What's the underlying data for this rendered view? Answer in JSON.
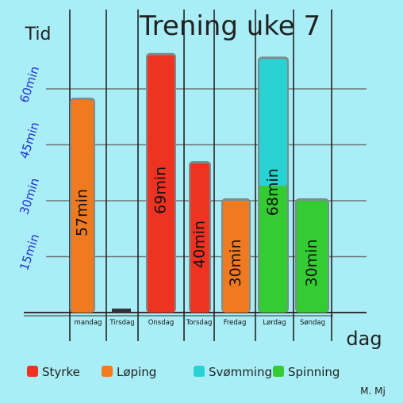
{
  "chart_data": {
    "type": "bar",
    "title": "Trening uke 7",
    "ylabel": "Tid",
    "xlabel": "dag",
    "signature": "M. Mj",
    "ylim": [
      0,
      80
    ],
    "yticks": [
      {
        "value": 15,
        "label": "15min"
      },
      {
        "value": 30,
        "label": "30min"
      },
      {
        "value": 45,
        "label": "45min"
      },
      {
        "value": 60,
        "label": "60min"
      }
    ],
    "grid": true,
    "legend_position": "bottom",
    "categories": [
      "mandag",
      "Tirsdag",
      "Onsdag",
      "Torsdag",
      "Fredag",
      "Lørdag",
      "Søndag"
    ],
    "series": [
      {
        "name": "Styrke",
        "color": "#ee3322",
        "values": [
          0,
          0,
          69,
          40,
          0,
          0,
          0
        ]
      },
      {
        "name": "Løping",
        "color": "#f07a20",
        "values": [
          57,
          0,
          0,
          0,
          30,
          0,
          0
        ]
      },
      {
        "name": "Svømming",
        "color": "#29d3d3",
        "values": [
          0,
          0,
          0,
          0,
          0,
          34,
          0
        ]
      },
      {
        "name": "Spinning",
        "color": "#33cc33",
        "values": [
          0,
          0,
          0,
          0,
          0,
          34,
          30
        ]
      }
    ],
    "data_labels": [
      "57min",
      "",
      "69min",
      "40min",
      "30min",
      "68min",
      "30min"
    ]
  }
}
